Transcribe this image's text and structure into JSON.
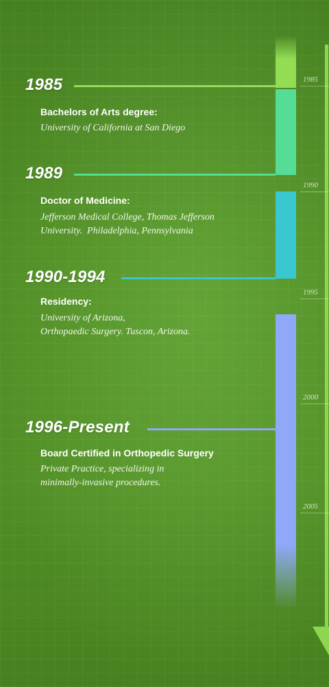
{
  "axis": {
    "labels": [
      "1985",
      "1990",
      "1995",
      "2000",
      "2005"
    ]
  },
  "entries": [
    {
      "year": "1985",
      "title": "Bachelors of Arts degree:",
      "lines": [
        "University of California at San Diego"
      ],
      "color": "#93dd55"
    },
    {
      "year": "1989",
      "title": "Doctor of Medicine:",
      "lines": [
        "Jefferson Medical College, Thomas Jefferson",
        "University.  Philadelphia, Pennsylvania"
      ],
      "color": "#55dd96"
    },
    {
      "year": "1990-1994",
      "title": "Residency:",
      "lines": [
        "University of Arizona,",
        "Orthopaedic Surgery. Tuscon, Arizona."
      ],
      "color": "#3ac8d0"
    },
    {
      "year": "1996-Present",
      "title": "Board Certified in Orthopedic Surgery",
      "lines": [
        "Private Practice, specializing in",
        "minimally-invasive procedures."
      ],
      "color": "#8fa8f8"
    }
  ]
}
